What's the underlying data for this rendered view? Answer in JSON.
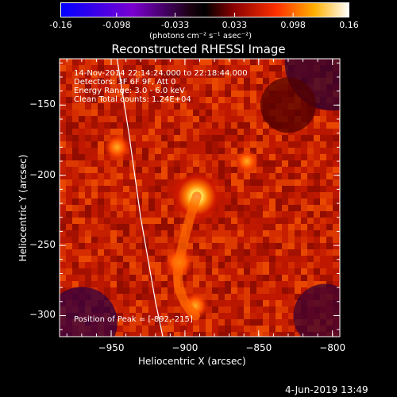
{
  "colorbar": {
    "tick_labels": [
      "-0.16",
      "-0.098",
      "-0.033",
      "0.033",
      "0.098",
      "0.16"
    ],
    "tick_values": [
      -0.16,
      -0.098,
      -0.033,
      0.033,
      0.098,
      0.16
    ],
    "units": "(photons cm⁻² s⁻¹ asec⁻²)",
    "range": [
      -0.16,
      0.16
    ]
  },
  "chart_data": {
    "type": "heatmap",
    "title": "Reconstructed RHESSI Image",
    "xlabel": "Heliocentric X (arcsec)",
    "ylabel": "Heliocentric Y (arcsec)",
    "xlim": [
      -985,
      -795
    ],
    "ylim": [
      -315,
      -117
    ],
    "xticks": [
      -950,
      -900,
      -850,
      -800
    ],
    "yticks": [
      -150,
      -200,
      -250,
      -300
    ],
    "xtick_labels": [
      "−950",
      "−900",
      "−850",
      "−800"
    ],
    "ytick_labels": [
      "−150",
      "−200",
      "−250",
      "−300"
    ],
    "sources": [
      {
        "x": -892,
        "y": -215,
        "peak": 0.16
      },
      {
        "x": -904,
        "y": -262,
        "peak": 0.07
      },
      {
        "x": -893,
        "y": -293,
        "peak": 0.06
      },
      {
        "x": -946,
        "y": -180,
        "peak": 0.055
      },
      {
        "x": -858,
        "y": -190,
        "peak": 0.04
      }
    ],
    "limb_curve": [
      [
        -946,
        -117
      ],
      [
        -938,
        -170
      ],
      [
        -930,
        -230
      ],
      [
        -920,
        -290
      ],
      [
        -915,
        -315
      ]
    ],
    "annotations": {
      "time": "14-Nov-2014 22:14:24.000 to 22:18:44.000",
      "detectors": "Detectors: 3F 6F 9F, Att 0",
      "energy": "Energy Range: 3.0 - 6.0 keV",
      "clean": "Clean    Total counts: 1.24E+04",
      "peak": "Position of Peak = [-892,-215]"
    }
  },
  "footer": {
    "date": "4-Jun-2019 13:49"
  }
}
